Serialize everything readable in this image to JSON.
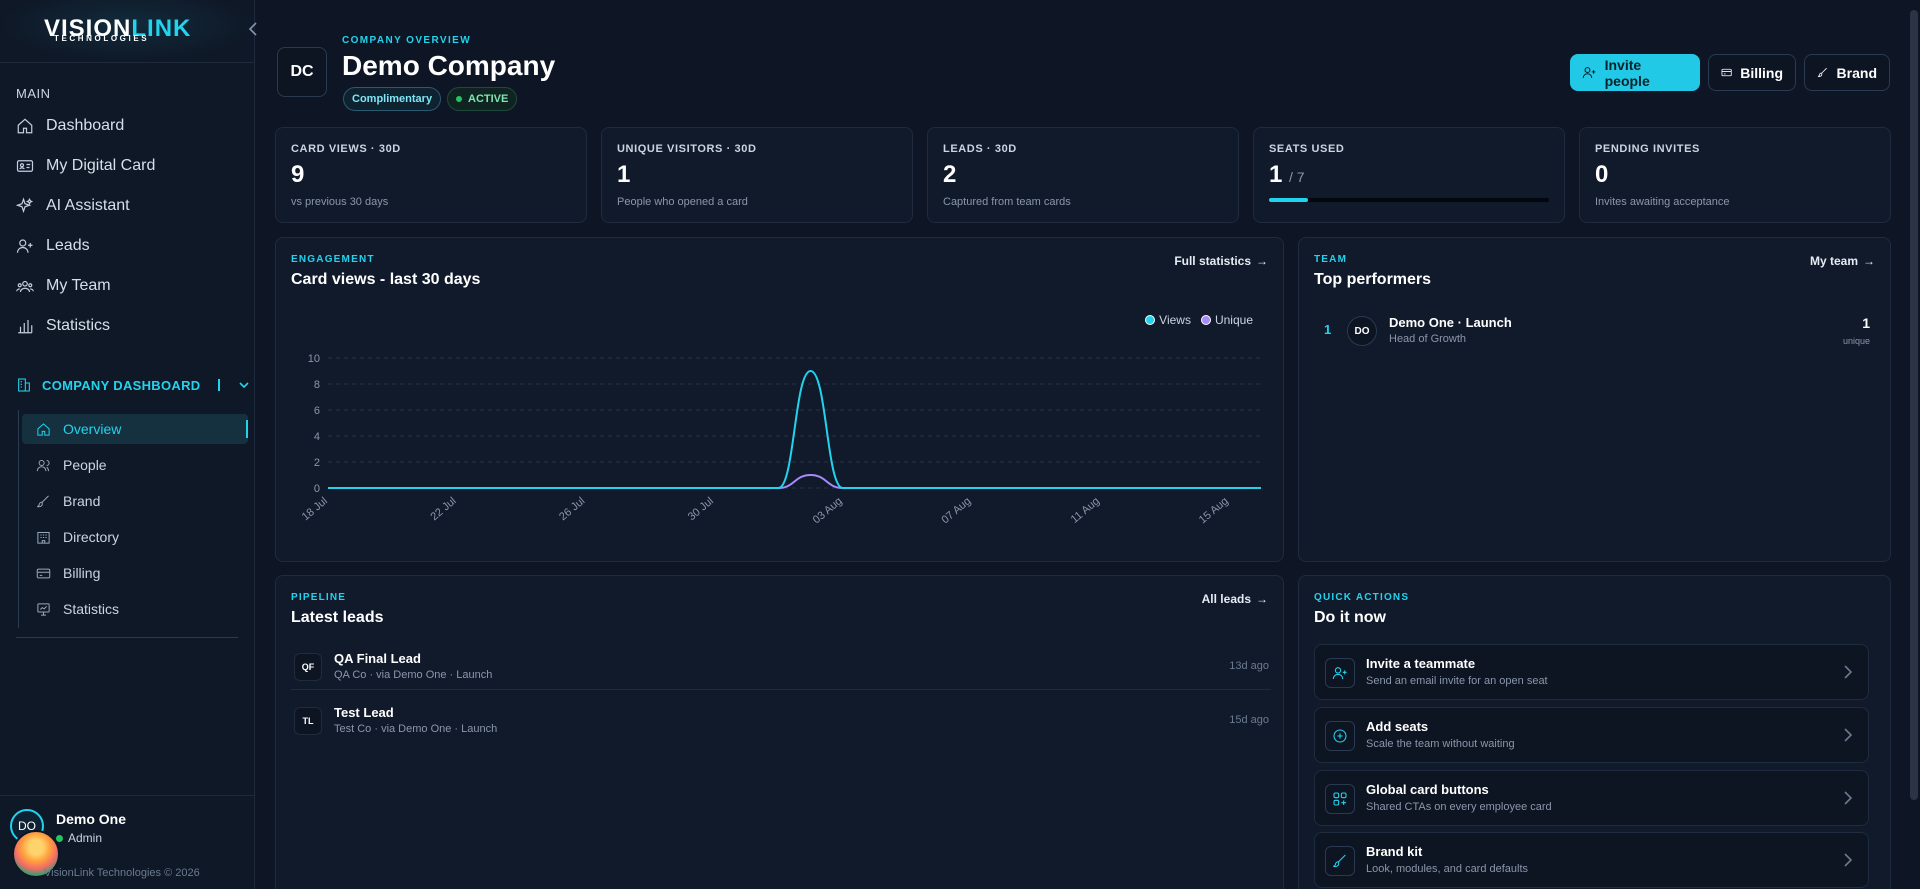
{
  "brand": {
    "name_main": "VISION",
    "name_accent": "LINK",
    "tagline": "TECHNOLOGIES"
  },
  "nav": {
    "section_label": "MAIN",
    "items": [
      {
        "label": "Dashboard",
        "icon": "home-icon"
      },
      {
        "label": "My Digital Card",
        "icon": "id-card-icon"
      },
      {
        "label": "AI Assistant",
        "icon": "sparkles-icon"
      },
      {
        "label": "Leads",
        "icon": "user-plus-icon"
      },
      {
        "label": "My Team",
        "icon": "users-icon"
      },
      {
        "label": "Statistics",
        "icon": "bar-chart-icon"
      }
    ],
    "company_section": {
      "label": "COMPANY DASHBOARD"
    },
    "sub_items": [
      {
        "label": "Overview",
        "icon": "home-icon",
        "active": true
      },
      {
        "label": "People",
        "icon": "users-icon"
      },
      {
        "label": "Brand",
        "icon": "brush-icon"
      },
      {
        "label": "Directory",
        "icon": "building-icon"
      },
      {
        "label": "Billing",
        "icon": "credit-card-icon"
      },
      {
        "label": "Statistics",
        "icon": "monitor-chart-icon"
      }
    ]
  },
  "user": {
    "initials": "DO",
    "name": "Demo One",
    "role": "Admin",
    "copyright": "VisionLink Technologies © 2026"
  },
  "header": {
    "avatar": "DC",
    "kicker": "COMPANY OVERVIEW",
    "company_name": "Demo Company",
    "plan_badge": "Complimentary",
    "status_badge": "ACTIVE",
    "buttons": {
      "invite": "Invite people",
      "billing": "Billing",
      "brand": "Brand"
    }
  },
  "stats": [
    {
      "label": "CARD VIEWS · 30D",
      "value": "9",
      "sub": "vs previous 30 days"
    },
    {
      "label": "UNIQUE VISITORS · 30D",
      "value": "1",
      "sub": "People who opened a card"
    },
    {
      "label": "LEADS · 30D",
      "value": "2",
      "sub": "Captured from team cards"
    },
    {
      "label": "SEATS USED",
      "value": "1",
      "total": "/ 7",
      "fraction": 0.14
    },
    {
      "label": "PENDING INVITES",
      "value": "0",
      "sub": "Invites awaiting acceptance"
    }
  ],
  "engagement": {
    "kicker": "ENGAGEMENT",
    "title": "Card views - last 30 days",
    "link": "Full statistics"
  },
  "chart_data": {
    "type": "line",
    "title": "Card views - last 30 days",
    "x": [
      "18 Jul",
      "19 Jul",
      "20 Jul",
      "21 Jul",
      "22 Jul",
      "23 Jul",
      "24 Jul",
      "25 Jul",
      "26 Jul",
      "27 Jul",
      "28 Jul",
      "29 Jul",
      "30 Jul",
      "31 Jul",
      "01 Aug",
      "02 Aug",
      "03 Aug",
      "04 Aug",
      "05 Aug",
      "06 Aug",
      "07 Aug",
      "08 Aug",
      "09 Aug",
      "10 Aug",
      "11 Aug",
      "12 Aug",
      "13 Aug",
      "14 Aug",
      "15 Aug",
      "16 Aug"
    ],
    "tick_labels": [
      "18 Jul",
      "22 Jul",
      "26 Jul",
      "30 Jul",
      "03 Aug",
      "07 Aug",
      "11 Aug",
      "15 Aug"
    ],
    "yticks": [
      0,
      2,
      4,
      6,
      8,
      10
    ],
    "ylim": [
      0,
      10
    ],
    "series": [
      {
        "name": "Views",
        "color": "#22d3ee",
        "values": [
          0,
          0,
          0,
          0,
          0,
          0,
          0,
          0,
          0,
          0,
          0,
          0,
          0,
          0,
          0,
          9,
          0,
          0,
          0,
          0,
          0,
          0,
          0,
          0,
          0,
          0,
          0,
          0,
          0,
          0
        ]
      },
      {
        "name": "Unique",
        "color": "#a78bfa",
        "values": [
          0,
          0,
          0,
          0,
          0,
          0,
          0,
          0,
          0,
          0,
          0,
          0,
          0,
          0,
          0,
          1,
          0,
          0,
          0,
          0,
          0,
          0,
          0,
          0,
          0,
          0,
          0,
          0,
          0,
          0
        ]
      }
    ],
    "legend": "top-right",
    "grid": true
  },
  "team": {
    "kicker": "TEAM",
    "title": "Top performers",
    "link": "My team",
    "performers": [
      {
        "rank": "1",
        "initials": "DO",
        "name": "Demo One · Launch",
        "role": "Head of Growth",
        "count": "1",
        "unit": "unique"
      }
    ]
  },
  "pipeline": {
    "kicker": "PIPELINE",
    "title": "Latest leads",
    "link": "All leads",
    "leads": [
      {
        "initials": "QF",
        "name": "QA Final Lead",
        "meta": "QA Co · via Demo One · Launch",
        "time": "13d ago"
      },
      {
        "initials": "TL",
        "name": "Test Lead",
        "meta": "Test Co · via Demo One · Launch",
        "time": "15d ago"
      }
    ]
  },
  "quick": {
    "kicker": "QUICK ACTIONS",
    "title": "Do it now",
    "actions": [
      {
        "title": "Invite a teammate",
        "sub": "Send an email invite for an open seat",
        "icon": "user-plus-icon"
      },
      {
        "title": "Add seats",
        "sub": "Scale the team without waiting",
        "icon": "plus-circle-icon"
      },
      {
        "title": "Global card buttons",
        "sub": "Shared CTAs on every employee card",
        "icon": "grid-plus-icon"
      },
      {
        "title": "Brand kit",
        "sub": "Look, modules, and card defaults",
        "icon": "brush-icon"
      }
    ]
  }
}
